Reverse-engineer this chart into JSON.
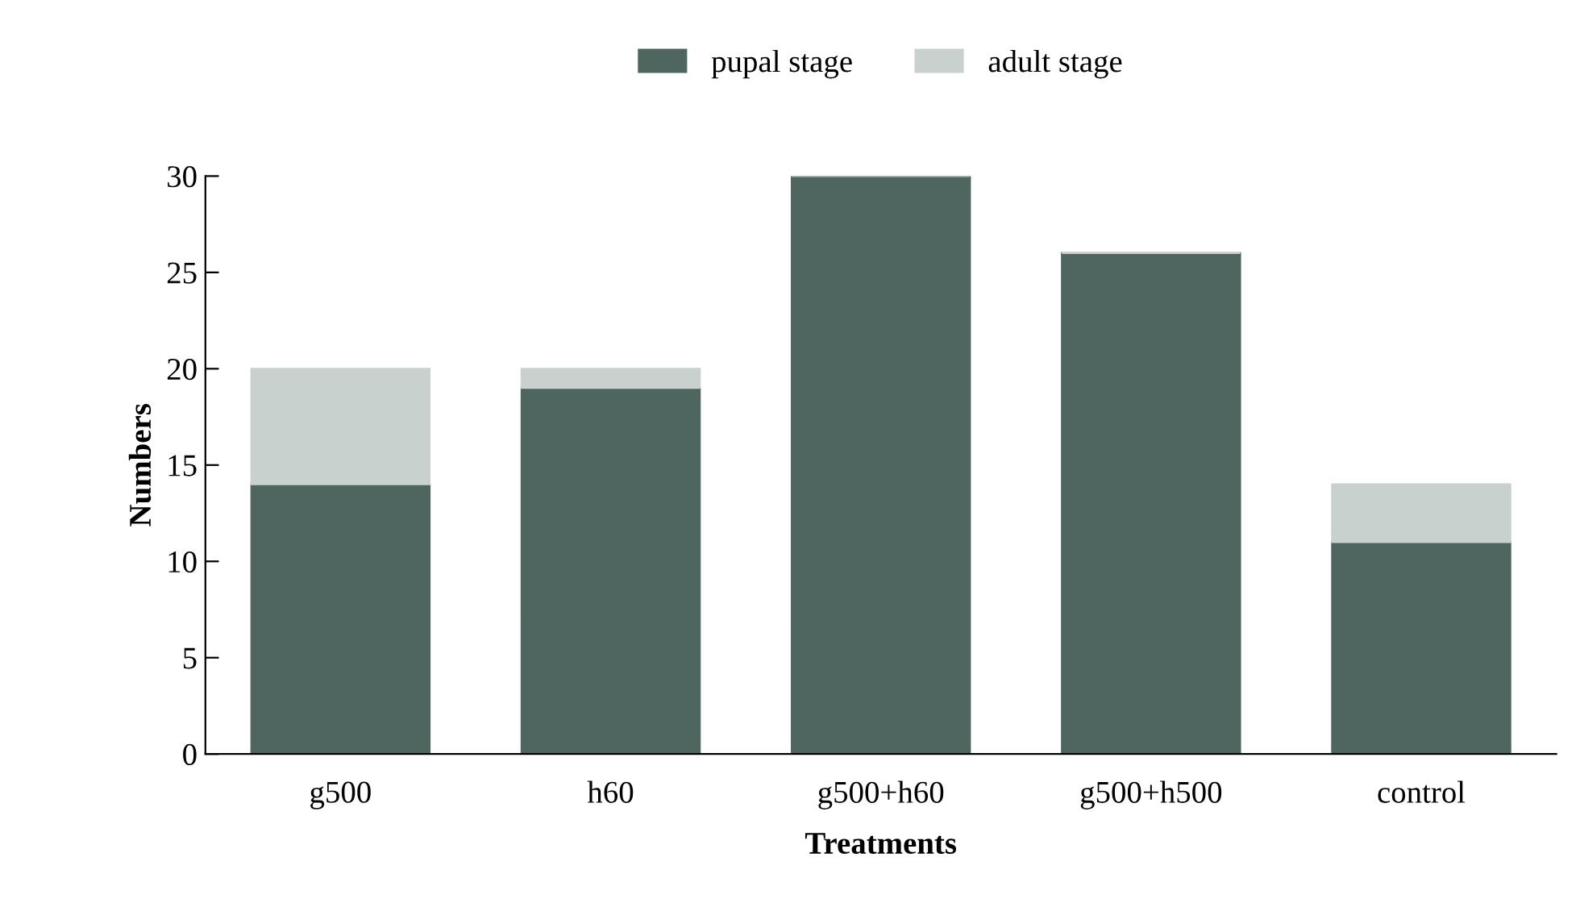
{
  "chart_data": {
    "type": "bar",
    "stacked": true,
    "xlabel": "Treatments",
    "ylabel": "Numbers",
    "categories": [
      "g500",
      "h60",
      "g500+h60",
      "g500+h500",
      "control"
    ],
    "series": [
      {
        "name": "pupal stage",
        "color": "#4f6660",
        "values": [
          14,
          19,
          30,
          26,
          11
        ]
      },
      {
        "name": "adult stage",
        "color": "#c9d1cf",
        "values": [
          6,
          1,
          0,
          0,
          3
        ]
      }
    ],
    "ylim": [
      0,
      30
    ],
    "yticks": [
      0,
      5,
      10,
      15,
      20,
      25,
      30
    ],
    "grid": false,
    "legend": "top"
  }
}
